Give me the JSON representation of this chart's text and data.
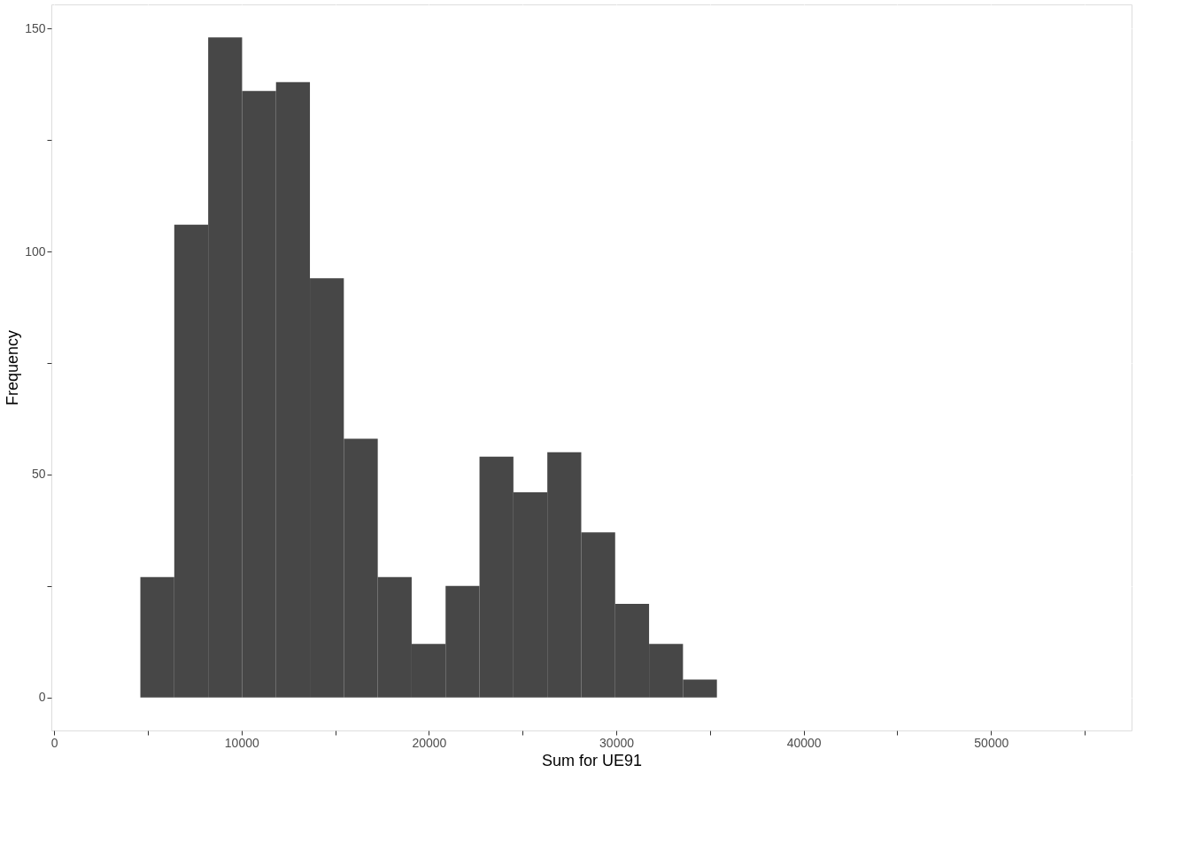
{
  "chart_data": {
    "type": "histogram",
    "xlabel": "Sum for UE91",
    "ylabel": "Frequency",
    "bins": [
      4600,
      6410,
      8220,
      10030,
      11840,
      13650,
      15460,
      17270,
      19080,
      20890,
      22700,
      24510,
      26320,
      28130,
      29940,
      31750,
      33560,
      35370
    ],
    "values": [
      27,
      106,
      148,
      136,
      138,
      94,
      58,
      27,
      12,
      25,
      54,
      46,
      55,
      37,
      21,
      12,
      4
    ],
    "color": "#474747",
    "xlim": [
      -150,
      57500
    ],
    "ylim": [
      -7.4,
      155.4
    ],
    "xticks": [
      0,
      {
        "value": 5000,
        "label": null
      },
      10000,
      {
        "value": 15000,
        "label": null
      },
      20000,
      {
        "value": 25000,
        "label": null
      },
      30000,
      {
        "value": 35000,
        "label": null
      },
      40000,
      {
        "value": 45000,
        "label": null
      },
      50000,
      {
        "value": 55000,
        "label": null
      }
    ],
    "yticks": [
      0,
      {
        "value": 25,
        "label": null
      },
      50,
      {
        "value": 75,
        "label": null
      },
      100,
      {
        "value": 125,
        "label": null
      },
      150
    ],
    "grid": true
  }
}
